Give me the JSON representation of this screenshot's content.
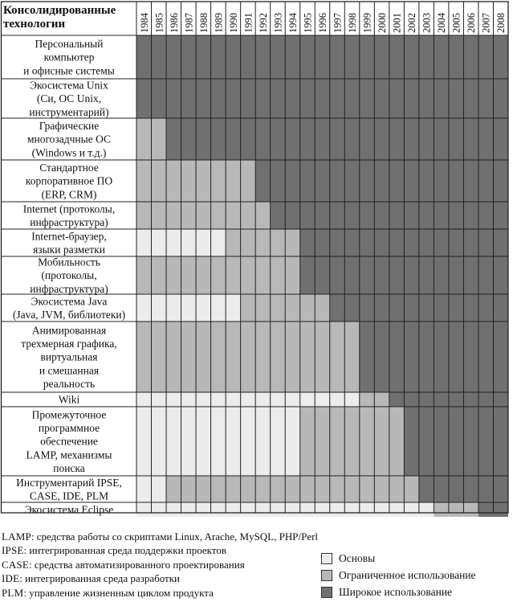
{
  "header": {
    "line1": "Консолидированные",
    "line2": "технологии"
  },
  "years": [
    "1984",
    "1985",
    "1986",
    "1987",
    "1988",
    "1989",
    "1990",
    "1991",
    "1992",
    "1993",
    "1994",
    "1995",
    "1996",
    "1997",
    "1998",
    "1999",
    "2000",
    "2001",
    "2002",
    "2003",
    "2004",
    "2005",
    "2006",
    "2007",
    "2008"
  ],
  "rows": [
    {
      "label": [
        "Персональный",
        "компьютер",
        "и офисные системы"
      ],
      "levels": [
        2,
        2,
        2,
        2,
        2,
        2,
        2,
        2,
        2,
        2,
        2,
        2,
        2,
        2,
        2,
        2,
        2,
        2,
        2,
        2,
        2,
        2,
        2,
        2,
        2
      ]
    },
    {
      "label": [
        "Экосистема Unix",
        "(Си, ОС Unix,",
        "инструментарий)"
      ],
      "levels": [
        2,
        2,
        2,
        2,
        2,
        2,
        2,
        2,
        2,
        2,
        2,
        2,
        2,
        2,
        2,
        2,
        2,
        2,
        2,
        2,
        2,
        2,
        2,
        2,
        2
      ]
    },
    {
      "label": [
        "Графические",
        "многозадчные ОС",
        "(Windows и т.д.)"
      ],
      "levels": [
        1,
        1,
        2,
        2,
        2,
        2,
        2,
        2,
        2,
        2,
        2,
        2,
        2,
        2,
        2,
        2,
        2,
        2,
        2,
        2,
        2,
        2,
        2,
        2,
        2
      ]
    },
    {
      "label": [
        "Стандартное",
        "корпоративное ПО",
        "(ERP, CRM)"
      ],
      "levels": [
        1,
        1,
        1,
        1,
        1,
        1,
        1,
        1,
        2,
        2,
        2,
        2,
        2,
        2,
        2,
        2,
        2,
        2,
        2,
        2,
        2,
        2,
        2,
        2,
        2
      ]
    },
    {
      "label": [
        "Internet (протоколы,",
        "инфраструктура)"
      ],
      "levels": [
        1,
        1,
        1,
        1,
        1,
        1,
        1,
        1,
        1,
        2,
        2,
        2,
        2,
        2,
        2,
        2,
        2,
        2,
        2,
        2,
        2,
        2,
        2,
        2,
        2
      ]
    },
    {
      "label": [
        "Internet-браузер,",
        "языки разметки"
      ],
      "levels": [
        0,
        0,
        0,
        0,
        0,
        0,
        1,
        1,
        1,
        1,
        1,
        2,
        2,
        2,
        2,
        2,
        2,
        2,
        2,
        2,
        2,
        2,
        2,
        2,
        2
      ]
    },
    {
      "label": [
        "Мобильность",
        "(протоколы,",
        "инфраструктура)"
      ],
      "levels": [
        1,
        1,
        1,
        1,
        1,
        1,
        1,
        1,
        1,
        1,
        1,
        2,
        2,
        2,
        2,
        2,
        2,
        2,
        2,
        2,
        2,
        2,
        2,
        2,
        2
      ]
    },
    {
      "label": [
        "Экосистема Java",
        "(Java, JVM, библиотеки)"
      ],
      "levels": [
        0,
        0,
        0,
        0,
        0,
        0,
        0,
        1,
        1,
        1,
        1,
        1,
        1,
        2,
        2,
        2,
        2,
        2,
        2,
        2,
        2,
        2,
        2,
        2,
        2
      ]
    },
    {
      "label": [
        "Анимированная",
        "трехмерная графика,",
        "виртуальная",
        "и смешанная",
        "реальность"
      ],
      "levels": [
        1,
        1,
        1,
        1,
        1,
        1,
        1,
        1,
        1,
        1,
        1,
        1,
        1,
        1,
        1,
        2,
        2,
        2,
        2,
        2,
        2,
        2,
        2,
        2,
        2
      ]
    },
    {
      "label": [
        "Wiki"
      ],
      "levels": [
        0,
        0,
        0,
        0,
        0,
        0,
        0,
        0,
        0,
        0,
        0,
        0,
        0,
        0,
        0,
        1,
        1,
        2,
        2,
        2,
        2,
        2,
        2,
        2,
        2
      ]
    },
    {
      "label": [
        "Промежуточное",
        "программное",
        "обеспечение",
        "LAMP, механизмы",
        "поиска"
      ],
      "levels": [
        0,
        0,
        0,
        0,
        0,
        0,
        0,
        0,
        0,
        0,
        0,
        1,
        1,
        1,
        1,
        1,
        1,
        1,
        2,
        2,
        2,
        2,
        2,
        2,
        2
      ]
    },
    {
      "label": [
        "Инструментарий IPSE,",
        "CASE, IDE, PLM"
      ],
      "levels": [
        0,
        0,
        1,
        1,
        1,
        1,
        1,
        1,
        1,
        1,
        1,
        1,
        1,
        1,
        1,
        1,
        1,
        1,
        1,
        2,
        2,
        2,
        2,
        2,
        2
      ]
    },
    {
      "label": [
        "Экосистема Eclipse"
      ],
      "levels": [
        0,
        0,
        0,
        0,
        0,
        0,
        0,
        0,
        0,
        0,
        0,
        0,
        0,
        0,
        0,
        0,
        0,
        0,
        0,
        0,
        1,
        1,
        1,
        2,
        2
      ]
    }
  ],
  "footnotes": [
    {
      "abbr": "LAMP",
      "text": ": средства работы со скриптами Linux, Arache, MySQL, PHP/Perl"
    },
    {
      "abbr": "IPSE",
      "text": ": интегрированная среда поддержки проектов"
    },
    {
      "abbr": "CASE",
      "text": ": средства автоматизированного проектирования"
    },
    {
      "abbr": "IDE",
      "text": ": интегрированная среда разработки"
    },
    {
      "abbr": "PLM",
      "text": ": управление жизненным циклом продукта"
    }
  ],
  "legend": [
    {
      "label": "Основы",
      "color": "#ececec"
    },
    {
      "label": "Ограниченное использование",
      "color": "#b8b8b8"
    },
    {
      "label": "Широкое использование",
      "color": "#707070"
    }
  ]
}
